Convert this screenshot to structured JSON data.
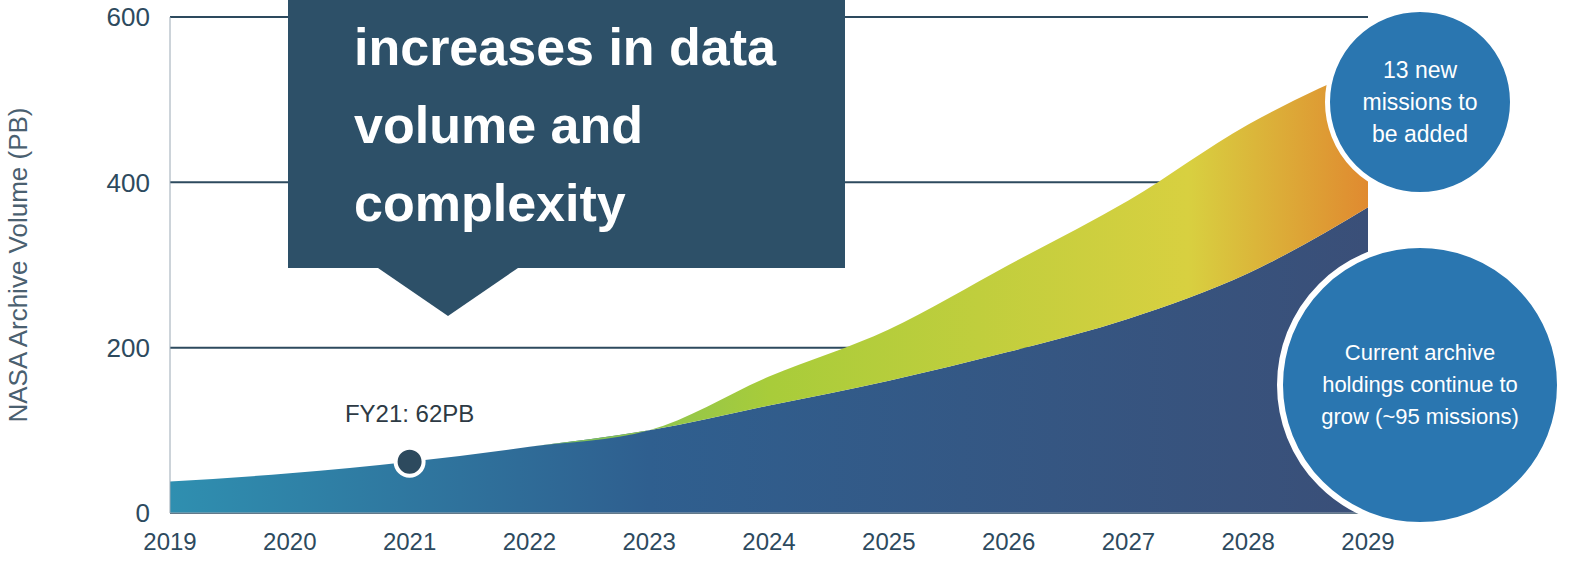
{
  "chart_data": {
    "type": "area",
    "y_label": "NASA Archive Volume (PB)",
    "x": [
      2019,
      2020,
      2021,
      2022,
      2023,
      2024,
      2025,
      2026,
      2027,
      2028,
      2029
    ],
    "series": [
      {
        "name": "Current archive holdings continue to grow (~95 missions)",
        "color": "#2f5f8f",
        "values": [
          38,
          48,
          62,
          80,
          100,
          130,
          160,
          195,
          235,
          290,
          370
        ]
      },
      {
        "name": "13 new missions to be added",
        "color": "#a8cc3a",
        "values": [
          0,
          0,
          0,
          0,
          0,
          35,
          62,
          105,
          143,
          180,
          170
        ]
      }
    ],
    "stacked": true,
    "xlim": [
      2019,
      2029
    ],
    "xticks": [
      2019,
      2020,
      2021,
      2022,
      2023,
      2024,
      2025,
      2026,
      2027,
      2028,
      2029
    ],
    "ylim": [
      0,
      600
    ],
    "yticks": [
      0,
      200,
      400,
      600
    ],
    "grid": true,
    "callout": "increases in data volume and complexity",
    "point_annotation": {
      "x": 2021,
      "y": 62,
      "label": "FY21: 62PB"
    }
  }
}
